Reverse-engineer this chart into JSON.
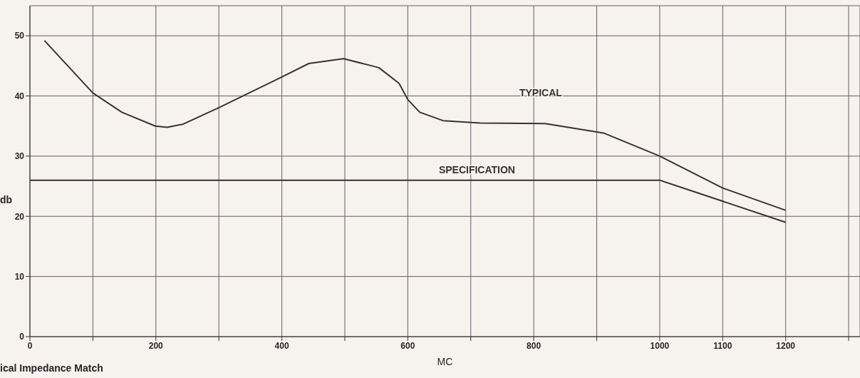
{
  "chart_data": {
    "type": "line",
    "title": "ical Impedance Match",
    "xlabel": "MC",
    "ylabel": "db",
    "xlim": [
      0,
      1318
    ],
    "ylim": [
      0,
      55
    ],
    "xticks": [
      0,
      {
        "value": 100,
        "label": null
      },
      200,
      {
        "value": 300,
        "label": null
      },
      400,
      {
        "value": 500,
        "label": null
      },
      600,
      {
        "value": 700,
        "label": null
      },
      800,
      {
        "value": 900,
        "label": null
      },
      1000,
      1100,
      1200,
      {
        "value": 1300,
        "label": null
      }
    ],
    "yticks": [
      0,
      10,
      20,
      30,
      40,
      50
    ],
    "grid": true,
    "marker": "none",
    "line_style": "solid",
    "series": [
      {
        "name": "TYPICAL",
        "color": "#3a3036",
        "x": [
          23,
          100,
          146,
          199,
          218,
          243,
          299,
          399,
          443,
          498,
          554,
          586,
          600,
          619,
          656,
          715,
          818,
          912,
          1000,
          1100,
          1200
        ],
        "values": [
          49.2,
          40.5,
          37.3,
          35.0,
          34.8,
          35.3,
          38.0,
          43.1,
          45.4,
          46.2,
          44.7,
          42.1,
          39.4,
          37.3,
          35.9,
          35.5,
          35.4,
          33.8,
          30.0,
          24.7,
          21.0
        ]
      },
      {
        "name": "SPECIFICATION",
        "color": "#3a3036",
        "x": [
          0,
          1000,
          1200
        ],
        "values": [
          26,
          26,
          19
        ]
      }
    ]
  }
}
